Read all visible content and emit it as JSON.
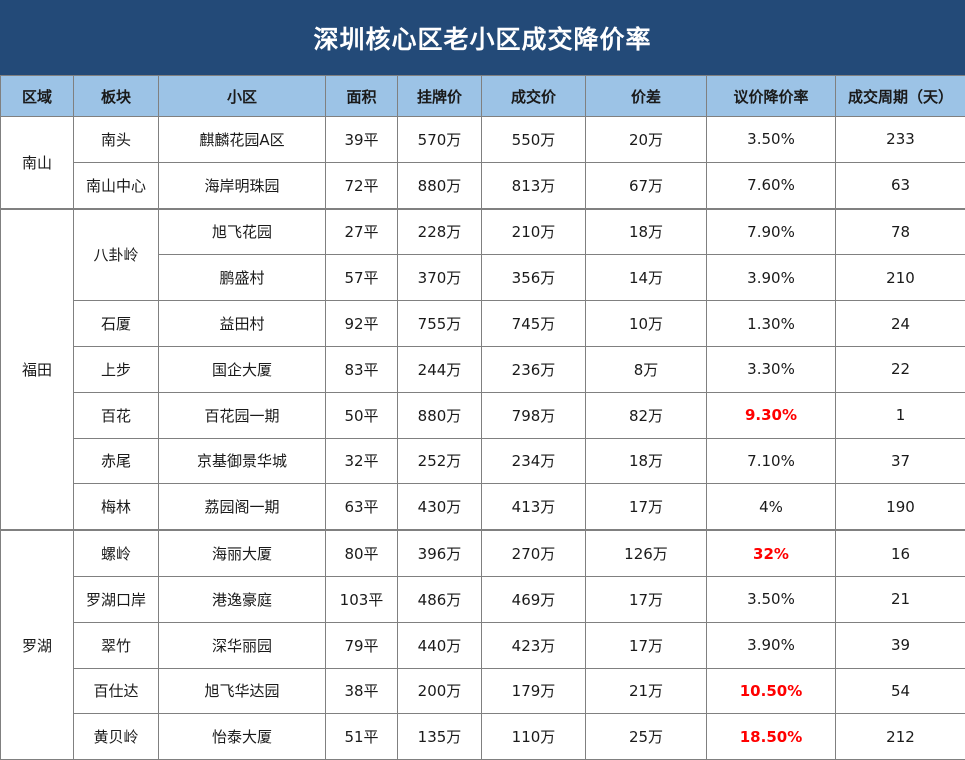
{
  "title": "深圳核心区老小区成交降价率",
  "headers": [
    "区域",
    "板块",
    "小区",
    "面积",
    "挂牌价",
    "成交价",
    "价差",
    "议价降价率",
    "成交周期（天）"
  ],
  "rows": [
    {
      "region": "南山",
      "block": "南头",
      "estate": "麒麟花园A区",
      "area": "39平",
      "list_price": "570万",
      "deal_price": "550万",
      "diff": "20万",
      "rate": "3.50%",
      "cycle": "233"
    },
    {
      "block": "南山中心",
      "estate": "海岸明珠园",
      "area": "72平",
      "list_price": "880万",
      "deal_price": "813万",
      "diff": "67万",
      "rate": "7.60%",
      "cycle": "63"
    },
    {
      "region": "福田",
      "block": "八卦岭",
      "estate": "旭飞花园",
      "area": "27平",
      "list_price": "228万",
      "deal_price": "210万",
      "diff": "18万",
      "rate": "7.90%",
      "cycle": "78"
    },
    {
      "estate": "鹏盛村",
      "area": "57平",
      "list_price": "370万",
      "deal_price": "356万",
      "diff": "14万",
      "rate": "3.90%",
      "cycle": "210"
    },
    {
      "block": "石厦",
      "estate": "益田村",
      "area": "92平",
      "list_price": "755万",
      "deal_price": "745万",
      "diff": "10万",
      "rate": "1.30%",
      "cycle": "24"
    },
    {
      "block": "上步",
      "estate": "国企大厦",
      "area": "83平",
      "list_price": "244万",
      "deal_price": "236万",
      "diff": "8万",
      "rate": "3.30%",
      "cycle": "22"
    },
    {
      "block": "百花",
      "estate": "百花园一期",
      "area": "50平",
      "list_price": "880万",
      "deal_price": "798万",
      "diff": "82万",
      "rate": "9.30%",
      "cycle": "1"
    },
    {
      "block": "赤尾",
      "estate": "京基御景华城",
      "area": "32平",
      "list_price": "252万",
      "deal_price": "234万",
      "diff": "18万",
      "rate": "7.10%",
      "cycle": "37"
    },
    {
      "block": "梅林",
      "estate": "荔园阁一期",
      "area": "63平",
      "list_price": "430万",
      "deal_price": "413万",
      "diff": "17万",
      "rate": "4%",
      "cycle": "190"
    },
    {
      "region": "罗湖",
      "block": "螺岭",
      "estate": "海丽大厦",
      "area": "80平",
      "list_price": "396万",
      "deal_price": "270万",
      "diff": "126万",
      "rate": "32%",
      "cycle": "16"
    },
    {
      "block": "罗湖口岸",
      "estate": "港逸豪庭",
      "area": "103平",
      "list_price": "486万",
      "deal_price": "469万",
      "diff": "17万",
      "rate": "3.50%",
      "cycle": "21"
    },
    {
      "block": "翠竹",
      "estate": "深华丽园",
      "area": "79平",
      "list_price": "440万",
      "deal_price": "423万",
      "diff": "17万",
      "rate": "3.90%",
      "cycle": "39"
    },
    {
      "block": "百仕达",
      "estate": "旭飞华达园",
      "area": "38平",
      "list_price": "200万",
      "deal_price": "179万",
      "diff": "21万",
      "rate": "10.50%",
      "cycle": "54"
    },
    {
      "block": "黄贝岭",
      "estate": "怡泰大厦",
      "area": "51平",
      "list_price": "135万",
      "deal_price": "110万",
      "diff": "25万",
      "rate": "18.50%",
      "cycle": "212"
    }
  ],
  "highlight_color": "#ff0000",
  "header_bg": "#9cc3e6",
  "title_bg": "#234a78"
}
